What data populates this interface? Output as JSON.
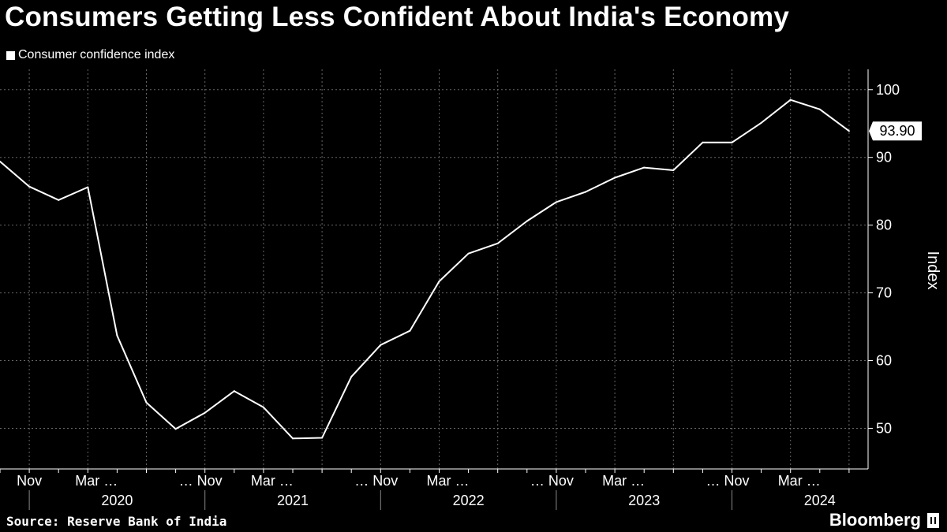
{
  "title": "Consumers Getting Less Confident About India's Economy",
  "source": "Source: Reserve Bank of India",
  "brand": "Bloomberg",
  "colors": {
    "background": "#000000",
    "line": "#ffffff",
    "grid": "#666666"
  },
  "chart_data": {
    "type": "line",
    "title": "Consumers Getting Less Confident About India's Economy",
    "legend": [
      "Consumer confidence index"
    ],
    "legend_position": "top-left",
    "xlabel": "",
    "ylabel": "Index",
    "ylim": [
      44,
      103
    ],
    "yticks": [
      50,
      60,
      70,
      80,
      90,
      100
    ],
    "grid": true,
    "x": [
      "2019-09",
      "2019-11",
      "2020-01",
      "2020-03",
      "2020-05",
      "2020-07",
      "2020-09",
      "2020-11",
      "2021-01",
      "2021-03",
      "2021-05",
      "2021-07",
      "2021-09",
      "2021-11",
      "2022-01",
      "2022-03",
      "2022-05",
      "2022-07",
      "2022-09",
      "2022-11",
      "2023-01",
      "2023-03",
      "2023-05",
      "2023-07",
      "2023-09",
      "2023-11",
      "2024-01",
      "2024-03",
      "2024-05",
      "2024-07"
    ],
    "series": [
      {
        "name": "Consumer confidence index",
        "values": [
          89.4,
          85.7,
          83.7,
          85.6,
          63.7,
          53.8,
          49.9,
          52.3,
          55.5,
          53.1,
          48.5,
          48.6,
          57.6,
          62.3,
          64.4,
          71.7,
          75.8,
          77.3,
          80.6,
          83.4,
          84.9,
          87.0,
          88.5,
          88.1,
          92.2,
          92.2,
          95.1,
          98.5,
          97.1,
          93.9
        ]
      }
    ],
    "last_value_label": "93.90",
    "x_tick_labels": [
      {
        "label": "Nov",
        "index": 1
      },
      {
        "label": "Mar …",
        "index": 3
      },
      {
        "label": "… Nov",
        "index": 7
      },
      {
        "label": "Mar …",
        "index": 9
      },
      {
        "label": "… Nov",
        "index": 13
      },
      {
        "label": "Mar …",
        "index": 15
      },
      {
        "label": "… Nov",
        "index": 19
      },
      {
        "label": "Mar …",
        "index": 21
      },
      {
        "label": "… Nov",
        "index": 25
      },
      {
        "label": "Mar …",
        "index": 27
      }
    ],
    "year_labels": [
      {
        "label": "2020",
        "center_index": 4
      },
      {
        "label": "2021",
        "center_index": 10
      },
      {
        "label": "2022",
        "center_index": 16
      },
      {
        "label": "2023",
        "center_index": 22
      },
      {
        "label": "2024",
        "center_index": 28
      }
    ],
    "year_boundaries": [
      1,
      7,
      13,
      19,
      25
    ]
  }
}
